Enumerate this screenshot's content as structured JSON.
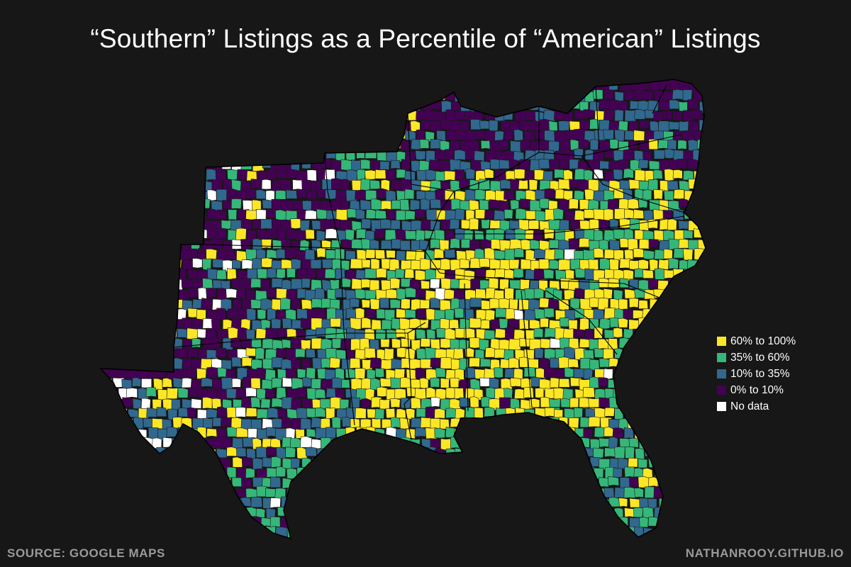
{
  "title": "“Southern” Listings as a Percentile of “American” Listings",
  "legend": [
    {
      "label": "60% to 100%",
      "color": "#fde725"
    },
    {
      "label": "35% to 60%",
      "color": "#35b779"
    },
    {
      "label": "10% to 35%",
      "color": "#31688e"
    },
    {
      "label": "0% to 10%",
      "color": "#440154"
    },
    {
      "label": "No data",
      "color": "#ffffff"
    }
  ],
  "source": "SOURCE: GOOGLE MAPS",
  "credit": "NATHANROOY.GITHUB.IO",
  "colors": {
    "background": "#171717",
    "county_border": "#1a1a1a",
    "state_border": "#000000"
  }
}
